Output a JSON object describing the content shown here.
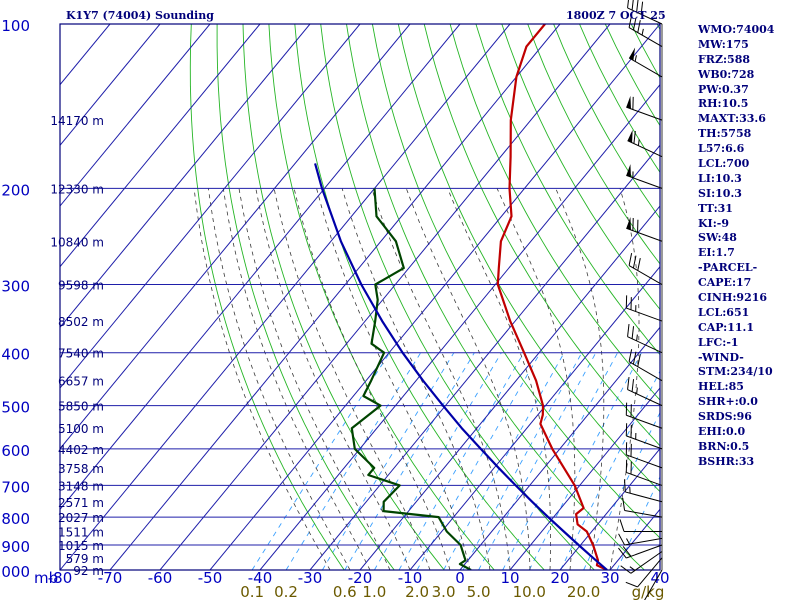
{
  "header": {
    "station": "K1Y7 (74004) Sounding",
    "time": "1800Z  7 OCT 25"
  },
  "indices": [
    "WMO:74004",
    "MW:175",
    "FRZ:588",
    "WB0:728",
    "PW:0.37",
    "RH:10.5",
    "MAXT:33.6",
    "TH:5758",
    "L57:6.6",
    "LCL:700",
    "LI:10.3",
    "SI:10.3",
    "TT:31",
    "KI:-9",
    "SW:48",
    "EI:1.7",
    "-PARCEL-",
    "CAPE:17",
    "CINH:9216",
    "LCL:651",
    "CAP:11.1",
    "LFC:-1",
    "-WIND-",
    "STM:234/10",
    "HEL:85",
    "SHR+:0.0",
    "SRDS:96",
    "EHI:0.0",
    "BRN:0.5",
    "BSHR:33"
  ],
  "colors": {
    "frame": "#00007a",
    "grid": "#1f1faa",
    "dry_adiabat": "#26b526",
    "moist_adiabat": "#3b3b3b",
    "mixing_ratio": "#3aa0ff",
    "temperature": "#c00000",
    "dewpoint": "#004400",
    "parcel": "#0000a8",
    "wind_barb": "#000000",
    "pressure_label": "#0000c0",
    "height_label": "#00007a",
    "mixing_label": "#6b5a00"
  },
  "chart_data": {
    "type": "line",
    "title": "K1Y7 (74004) Sounding",
    "subtitle": "1800Z  7 OCT 25",
    "xlabel": "",
    "ylabel": "mb",
    "y_unit_label": "mb",
    "x_unit_label": "g/kg",
    "y_scale": "log",
    "xlim": [
      -80,
      40
    ],
    "ylim": [
      1000,
      100
    ],
    "skew_per_decade": 90,
    "grid": true,
    "pressure_levels": [
      1000,
      900,
      800,
      700,
      600,
      500,
      400,
      300,
      200,
      100
    ],
    "pressure_labels": [
      "1000",
      "900",
      "800",
      "700",
      "600",
      "500",
      "400",
      "300",
      "200",
      "100"
    ],
    "temperature_ticks": [
      -80,
      -70,
      -60,
      -50,
      -40,
      -30,
      -20,
      -10,
      0,
      10,
      20,
      30,
      40
    ],
    "temperature_tick_labels": [
      "-80",
      "-70",
      "-60",
      "-50",
      "-40",
      "-30",
      "-20",
      "-10",
      "0",
      "10",
      "20",
      "30",
      "40"
    ],
    "mixing_ratio_lines": [
      0.1,
      0.2,
      0.6,
      1.0,
      2.0,
      3.0,
      5.0,
      10.0,
      20.0
    ],
    "mixing_ratio_labels": [
      "0.1",
      "0.2",
      "0.6",
      "1.0",
      "2.0",
      "3.0",
      "5.0",
      "10.0",
      "20.0"
    ],
    "heights": [
      {
        "p": 1000,
        "label": "92 m"
      },
      {
        "p": 950,
        "label": "579 m"
      },
      {
        "p": 900,
        "label": "1015 m"
      },
      {
        "p": 850,
        "label": "1511 m"
      },
      {
        "p": 800,
        "label": "2027 m"
      },
      {
        "p": 750,
        "label": "2571 m"
      },
      {
        "p": 700,
        "label": "3148 m"
      },
      {
        "p": 650,
        "label": "3758 m"
      },
      {
        "p": 600,
        "label": "4402 m"
      },
      {
        "p": 550,
        "label": "5100 m"
      },
      {
        "p": 500,
        "label": "5850 m"
      },
      {
        "p": 450,
        "label": "6657 m"
      },
      {
        "p": 400,
        "label": "7540 m"
      },
      {
        "p": 350,
        "label": "8502 m"
      },
      {
        "p": 300,
        "label": "9598 m"
      },
      {
        "p": 250,
        "label": "10840 m"
      },
      {
        "p": 200,
        "label": "12330 m"
      },
      {
        "p": 150,
        "label": "14170 m"
      }
    ],
    "dry_adiabats_K": [
      250,
      260,
      270,
      280,
      290,
      300,
      310,
      320,
      330,
      340,
      350,
      360,
      370,
      380,
      390,
      400,
      410,
      420,
      430,
      440,
      450,
      460,
      470,
      480,
      490
    ],
    "moist_adiabats_C": [
      -26,
      -22,
      -18,
      -14,
      -10,
      -6,
      -2,
      2,
      6,
      10,
      14,
      18,
      22,
      26,
      30
    ],
    "series": [
      {
        "name": "Temperature",
        "points": [
          [
            1000,
            29.4
          ],
          [
            980,
            26.6
          ],
          [
            960,
            26.0
          ],
          [
            925,
            24.0
          ],
          [
            900,
            22.5
          ],
          [
            850,
            19.0
          ],
          [
            825,
            16.0
          ],
          [
            790,
            14.0
          ],
          [
            770,
            14.5
          ],
          [
            700,
            9.0
          ],
          [
            600,
            -1.5
          ],
          [
            540,
            -8.0
          ],
          [
            520,
            -9.0
          ],
          [
            500,
            -10.5
          ],
          [
            450,
            -16.0
          ],
          [
            400,
            -23.0
          ],
          [
            350,
            -31.0
          ],
          [
            300,
            -39.5
          ],
          [
            280,
            -42.0
          ],
          [
            250,
            -46.0
          ],
          [
            225,
            -48.0
          ],
          [
            200,
            -53.0
          ],
          [
            175,
            -58.0
          ],
          [
            150,
            -64.0
          ],
          [
            125,
            -70.0
          ],
          [
            110,
            -73.0
          ],
          [
            100,
            -73.0
          ]
        ]
      },
      {
        "name": "Dewpoint",
        "points": [
          [
            1000,
            2.2
          ],
          [
            975,
            -1.0
          ],
          [
            960,
            -0.5
          ],
          [
            900,
            -4.0
          ],
          [
            850,
            -9.0
          ],
          [
            800,
            -13.0
          ],
          [
            780,
            -25.0
          ],
          [
            750,
            -26.5
          ],
          [
            700,
            -26.0
          ],
          [
            670,
            -34.0
          ],
          [
            650,
            -34.0
          ],
          [
            600,
            -41.0
          ],
          [
            550,
            -45.0
          ],
          [
            500,
            -43.0
          ],
          [
            480,
            -48.0
          ],
          [
            450,
            -49.0
          ],
          [
            400,
            -51.0
          ],
          [
            385,
            -55.0
          ],
          [
            350,
            -58.0
          ],
          [
            320,
            -61.0
          ],
          [
            300,
            -64.0
          ],
          [
            280,
            -61.0
          ],
          [
            250,
            -67.0
          ],
          [
            225,
            -75.0
          ],
          [
            200,
            -80.0
          ]
        ]
      },
      {
        "name": "Parcel",
        "points": [
          [
            1000,
            29.4
          ],
          [
            950,
            24.6
          ],
          [
            900,
            19.6
          ],
          [
            850,
            14.4
          ],
          [
            800,
            8.9
          ],
          [
            750,
            3.2
          ],
          [
            700,
            -2.8
          ],
          [
            651,
            -9.0
          ],
          [
            600,
            -15.8
          ],
          [
            550,
            -23.0
          ],
          [
            500,
            -30.5
          ],
          [
            450,
            -38.6
          ],
          [
            400,
            -47.3
          ],
          [
            350,
            -56.6
          ],
          [
            300,
            -66.8
          ],
          [
            250,
            -78.0
          ],
          [
            200,
            -90.5
          ],
          [
            180,
            -96.0
          ]
        ]
      }
    ],
    "wind_barbs": [
      {
        "p": 1000,
        "dir": 210,
        "spd": 5
      },
      {
        "p": 950,
        "dir": 220,
        "spd": 10
      },
      {
        "p": 925,
        "dir": 235,
        "spd": 15
      },
      {
        "p": 900,
        "dir": 250,
        "spd": 20
      },
      {
        "p": 875,
        "dir": 260,
        "spd": 15
      },
      {
        "p": 850,
        "dir": 270,
        "spd": 10
      },
      {
        "p": 800,
        "dir": 280,
        "spd": 10
      },
      {
        "p": 750,
        "dir": 285,
        "spd": 15
      },
      {
        "p": 700,
        "dir": 290,
        "spd": 20
      },
      {
        "p": 650,
        "dir": 290,
        "spd": 20
      },
      {
        "p": 600,
        "dir": 290,
        "spd": 25
      },
      {
        "p": 550,
        "dir": 290,
        "spd": 20
      },
      {
        "p": 500,
        "dir": 295,
        "spd": 25
      },
      {
        "p": 450,
        "dir": 300,
        "spd": 30
      },
      {
        "p": 400,
        "dir": 295,
        "spd": 25
      },
      {
        "p": 350,
        "dir": 290,
        "spd": 25
      },
      {
        "p": 300,
        "dir": 300,
        "spd": 30
      },
      {
        "p": 250,
        "dir": 290,
        "spd": 70
      },
      {
        "p": 200,
        "dir": 290,
        "spd": 55
      },
      {
        "p": 175,
        "dir": 295,
        "spd": 65
      },
      {
        "p": 150,
        "dir": 290,
        "spd": 60
      },
      {
        "p": 125,
        "dir": 300,
        "spd": 55
      },
      {
        "p": 110,
        "dir": 300,
        "spd": 35
      },
      {
        "p": 100,
        "dir": 295,
        "spd": 40
      }
    ]
  }
}
